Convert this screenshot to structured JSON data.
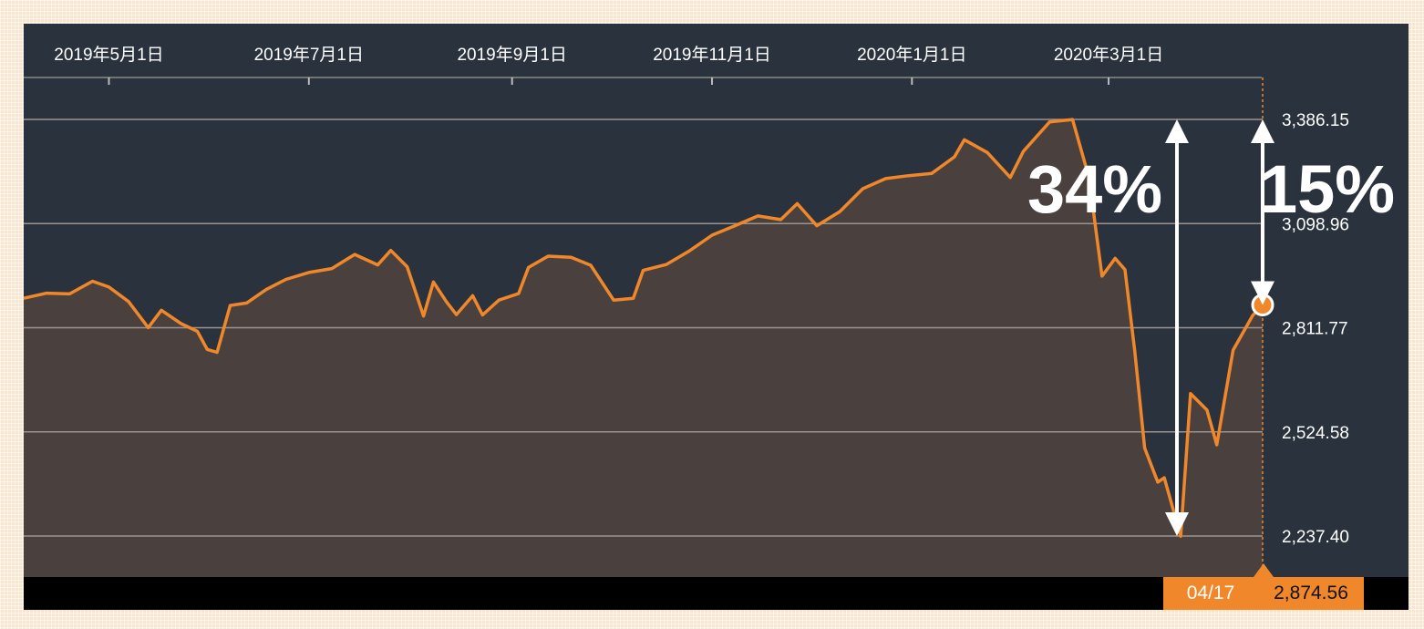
{
  "chart_data": {
    "type": "area",
    "title": "",
    "xlabel": "",
    "ylabel": "",
    "x_tick_labels": [
      "2019年5月1日",
      "2019年7月1日",
      "2019年9月1日",
      "2019年11月1日",
      "2020年1月1日",
      "2020年3月1日"
    ],
    "y_tick_labels": [
      "3,386.15",
      "3,098.96",
      "2,811.77",
      "2,524.58",
      "2,237.40"
    ],
    "y_ticks": [
      3386.15,
      3098.96,
      2811.77,
      2524.58,
      2237.4
    ],
    "ylim": [
      2120,
      3600
    ],
    "xlim": [
      "2019-04-05",
      "2020-04-17"
    ],
    "grid": true,
    "series": [
      {
        "color": "#f0872a",
        "fill": "#4a413e",
        "points": [
          [
            "2019-04-05",
            2893
          ],
          [
            "2019-04-12",
            2907
          ],
          [
            "2019-04-19",
            2905
          ],
          [
            "2019-04-26",
            2940
          ],
          [
            "2019-05-01",
            2924
          ],
          [
            "2019-05-07",
            2884
          ],
          [
            "2019-05-13",
            2812
          ],
          [
            "2019-05-17",
            2860
          ],
          [
            "2019-05-23",
            2823
          ],
          [
            "2019-05-28",
            2802
          ],
          [
            "2019-05-31",
            2752
          ],
          [
            "2019-06-03",
            2744
          ],
          [
            "2019-06-07",
            2873
          ],
          [
            "2019-06-12",
            2880
          ],
          [
            "2019-06-18",
            2917
          ],
          [
            "2019-06-24",
            2945
          ],
          [
            "2019-07-01",
            2964
          ],
          [
            "2019-07-08",
            2975
          ],
          [
            "2019-07-15",
            3014
          ],
          [
            "2019-07-22",
            2985
          ],
          [
            "2019-07-26",
            3025
          ],
          [
            "2019-07-31",
            2980
          ],
          [
            "2019-08-05",
            2844
          ],
          [
            "2019-08-08",
            2938
          ],
          [
            "2019-08-12",
            2883
          ],
          [
            "2019-08-15",
            2848
          ],
          [
            "2019-08-20",
            2900
          ],
          [
            "2019-08-23",
            2847
          ],
          [
            "2019-08-28",
            2888
          ],
          [
            "2019-09-03",
            2906
          ],
          [
            "2019-09-06",
            2978
          ],
          [
            "2019-09-12",
            3009
          ],
          [
            "2019-09-19",
            3006
          ],
          [
            "2019-09-25",
            2984
          ],
          [
            "2019-10-02",
            2888
          ],
          [
            "2019-10-08",
            2893
          ],
          [
            "2019-10-11",
            2970
          ],
          [
            "2019-10-18",
            2986
          ],
          [
            "2019-10-25",
            3023
          ],
          [
            "2019-11-01",
            3067
          ],
          [
            "2019-11-08",
            3093
          ],
          [
            "2019-11-15",
            3120
          ],
          [
            "2019-11-22",
            3110
          ],
          [
            "2019-11-27",
            3154
          ],
          [
            "2019-12-03",
            3093
          ],
          [
            "2019-12-10",
            3132
          ],
          [
            "2019-12-17",
            3195
          ],
          [
            "2019-12-24",
            3223
          ],
          [
            "2019-12-31",
            3231
          ],
          [
            "2020-01-07",
            3237
          ],
          [
            "2020-01-14",
            3283
          ],
          [
            "2020-01-17",
            3330
          ],
          [
            "2020-01-24",
            3295
          ],
          [
            "2020-01-31",
            3226
          ],
          [
            "2020-02-04",
            3298
          ],
          [
            "2020-02-12",
            3379
          ],
          [
            "2020-02-19",
            3386
          ],
          [
            "2020-02-24",
            3226
          ],
          [
            "2020-02-28",
            2954
          ],
          [
            "2020-03-03",
            3003
          ],
          [
            "2020-03-06",
            2972
          ],
          [
            "2020-03-09",
            2746
          ],
          [
            "2020-03-12",
            2480
          ],
          [
            "2020-03-16",
            2386
          ],
          [
            "2020-03-18",
            2398
          ],
          [
            "2020-03-23",
            2237
          ],
          [
            "2020-03-26",
            2630
          ],
          [
            "2020-03-31",
            2585
          ],
          [
            "2020-04-03",
            2489
          ],
          [
            "2020-04-08",
            2750
          ],
          [
            "2020-04-14",
            2846
          ],
          [
            "2020-04-17",
            2874.56
          ]
        ]
      }
    ],
    "annotations": [
      {
        "label": "34%",
        "from": 3386.15,
        "to": 2237.4
      },
      {
        "label": "15%",
        "from": 3386.15,
        "to": 2874.56
      }
    ],
    "last_point": {
      "date": "04/17",
      "value": "2,874.56"
    }
  }
}
